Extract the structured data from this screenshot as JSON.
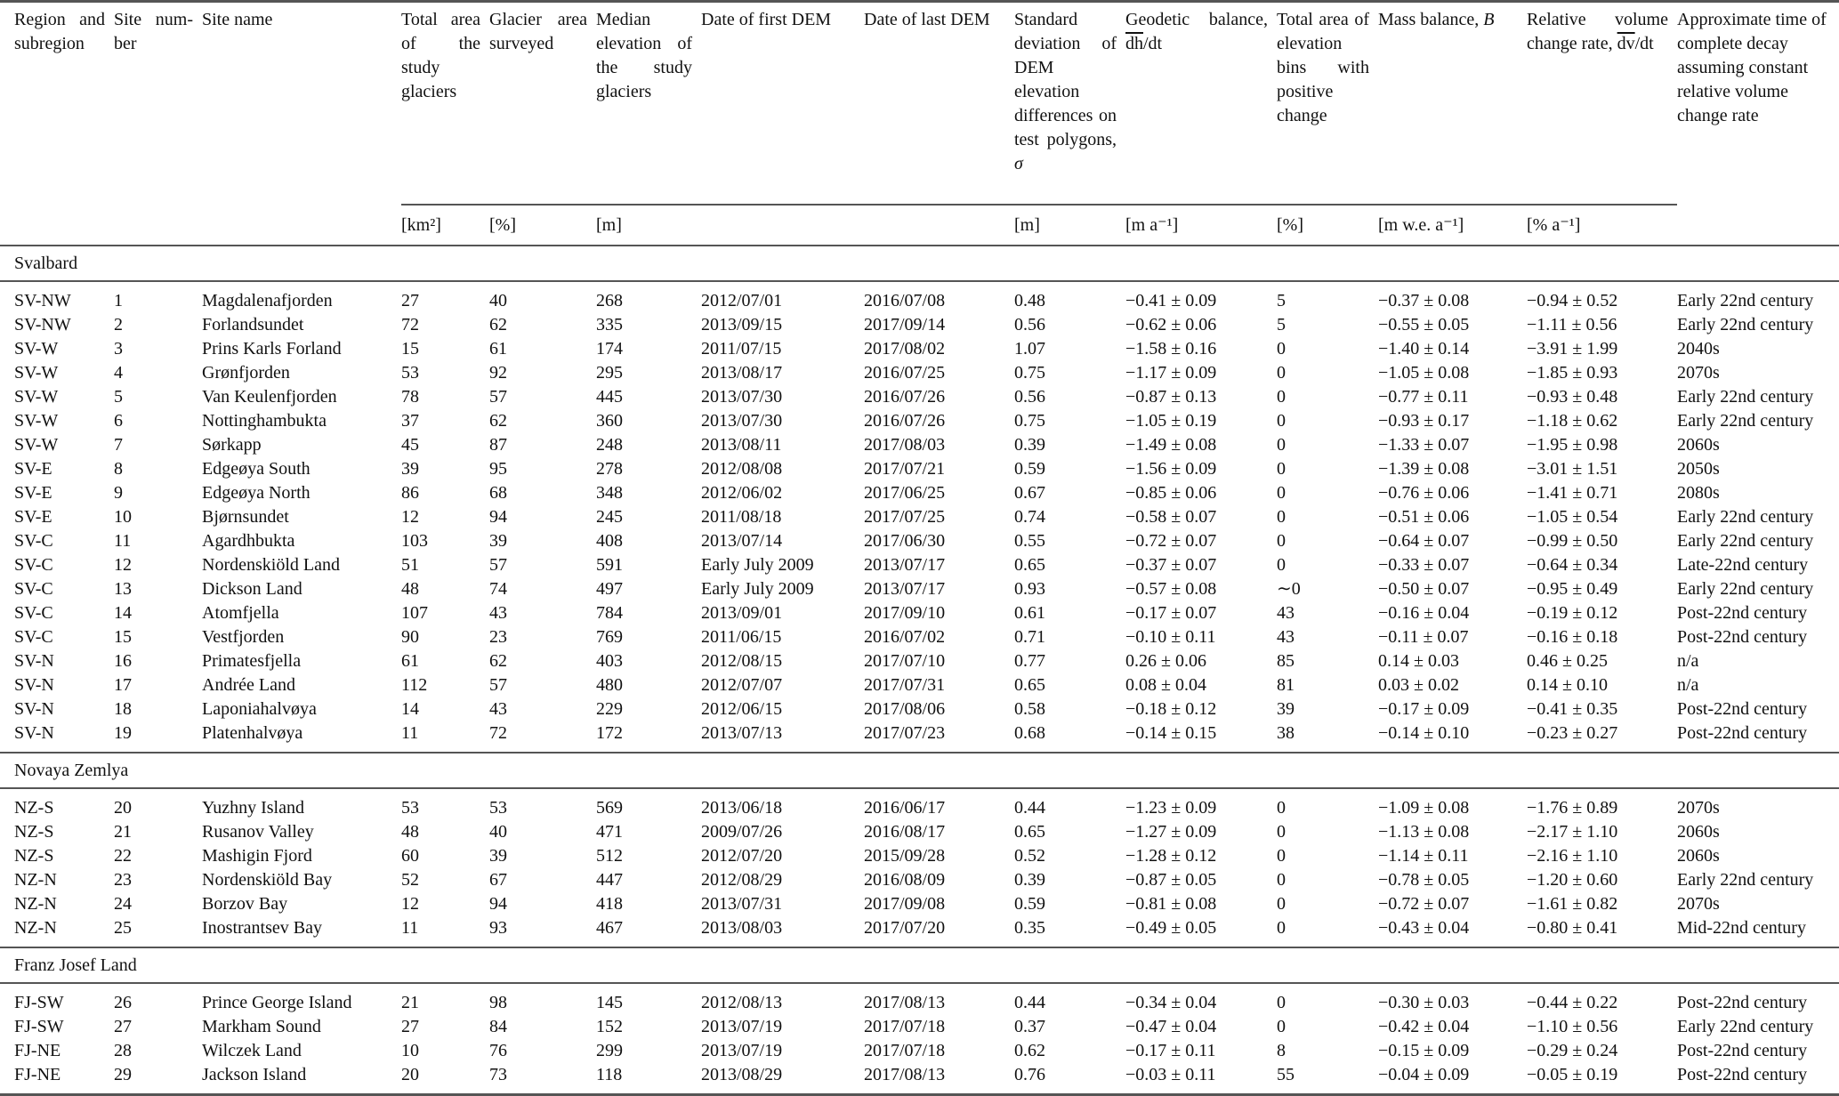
{
  "headers": {
    "region": "Region and subregion",
    "site_number": "Site num­ber",
    "site_name": "Site name",
    "total_area": "Total area of the study glaciers",
    "glacier_area": "Glacier area surveyed",
    "median_elev": "Median elevation of the study glaciers",
    "date_first": "Date of first DEM",
    "date_last": "Date of last DEM",
    "std_dev": "Standard deviation of DEM elevation differences on test polygons,",
    "std_dev_symbol": "σ",
    "geodetic": "Geodetic bal­ance,",
    "geodetic_symbol_d": "dh",
    "geodetic_symbol_rest": "/dt",
    "positive_bins": "Total area of elevation bins with positive change",
    "mass_balance": "Mass balance,",
    "mass_balance_symbol": "B",
    "relative_volume": "Relative vol­ume change rate,",
    "relative_volume_symbol_d": "dv",
    "relative_volume_symbol_rest": "/dt",
    "decay_time": "Approximate time of complete decay assuming constant relative volume change rate"
  },
  "units": {
    "total_area": "[km²]",
    "glacier_area": "[%]",
    "median_elev": "[m]",
    "std_dev": "[m]",
    "geodetic": "[m a⁻¹]",
    "positive_bins": "[%]",
    "mass_balance": "[m w.e. a⁻¹]",
    "relative_volume": "[% a⁻¹]"
  },
  "sections": [
    {
      "title": "Svalbard",
      "rows": [
        [
          "SV-NW",
          "1",
          "Magdalenafjorden",
          "27",
          "40",
          "268",
          "2012/07/01",
          "2016/07/08",
          "0.48",
          "−0.41 ± 0.09",
          "5",
          "−0.37 ± 0.08",
          "−0.94 ± 0.52",
          "Early 22nd century"
        ],
        [
          "SV-NW",
          "2",
          "Forlandsundet",
          "72",
          "62",
          "335",
          "2013/09/15",
          "2017/09/14",
          "0.56",
          "−0.62 ± 0.06",
          "5",
          "−0.55 ± 0.05",
          "−1.11 ± 0.56",
          "Early 22nd century"
        ],
        [
          "SV-W",
          "3",
          "Prins Karls Forland",
          "15",
          "61",
          "174",
          "2011/07/15",
          "2017/08/02",
          "1.07",
          "−1.58 ± 0.16",
          "0",
          "−1.40 ± 0.14",
          "−3.91 ± 1.99",
          "2040s"
        ],
        [
          "SV-W",
          "4",
          "Grønfjorden",
          "53",
          "92",
          "295",
          "2013/08/17",
          "2016/07/25",
          "0.75",
          "−1.17 ± 0.09",
          "0",
          "−1.05 ± 0.08",
          "−1.85 ± 0.93",
          "2070s"
        ],
        [
          "SV-W",
          "5",
          "Van Keulenfjorden",
          "78",
          "57",
          "445",
          "2013/07/30",
          "2016/07/26",
          "0.56",
          "−0.87 ± 0.13",
          "0",
          "−0.77 ± 0.11",
          "−0.93 ± 0.48",
          "Early 22nd century"
        ],
        [
          "SV-W",
          "6",
          "Nottinghambukta",
          "37",
          "62",
          "360",
          "2013/07/30",
          "2016/07/26",
          "0.75",
          "−1.05 ± 0.19",
          "0",
          "−0.93 ± 0.17",
          "−1.18 ± 0.62",
          "Early 22nd century"
        ],
        [
          "SV-W",
          "7",
          "Sørkapp",
          "45",
          "87",
          "248",
          "2013/08/11",
          "2017/08/03",
          "0.39",
          "−1.49 ± 0.08",
          "0",
          "−1.33 ± 0.07",
          "−1.95 ± 0.98",
          "2060s"
        ],
        [
          "SV-E",
          "8",
          "Edgeøya South",
          "39",
          "95",
          "278",
          "2012/08/08",
          "2017/07/21",
          "0.59",
          "−1.56 ± 0.09",
          "0",
          "−1.39 ± 0.08",
          "−3.01 ± 1.51",
          "2050s"
        ],
        [
          "SV-E",
          "9",
          "Edgeøya North",
          "86",
          "68",
          "348",
          "2012/06/02",
          "2017/06/25",
          "0.67",
          "−0.85 ± 0.06",
          "0",
          "−0.76 ± 0.06",
          "−1.41 ± 0.71",
          "2080s"
        ],
        [
          "SV-E",
          "10",
          "Bjørnsundet",
          "12",
          "94",
          "245",
          "2011/08/18",
          "2017/07/25",
          "0.74",
          "−0.58 ± 0.07",
          "0",
          "−0.51 ± 0.06",
          "−1.05 ± 0.54",
          "Early 22nd century"
        ],
        [
          "SV-C",
          "11",
          "Agardhbukta",
          "103",
          "39",
          "408",
          "2013/07/14",
          "2017/06/30",
          "0.55",
          "−0.72 ± 0.07",
          "0",
          "−0.64 ± 0.07",
          "−0.99 ± 0.50",
          "Early 22nd century"
        ],
        [
          "SV-C",
          "12",
          "Nordenskiöld Land",
          "51",
          "57",
          "591",
          "Early July 2009",
          "2013/07/17",
          "0.65",
          "−0.37 ± 0.07",
          "0",
          "−0.33 ± 0.07",
          "−0.64 ± 0.34",
          "Late-22nd century"
        ],
        [
          "SV-C",
          "13",
          "Dickson Land",
          "48",
          "74",
          "497",
          "Early July 2009",
          "2013/07/17",
          "0.93",
          "−0.57 ± 0.08",
          "∼0",
          "−0.50 ± 0.07",
          "−0.95 ± 0.49",
          "Early 22nd century"
        ],
        [
          "SV-C",
          "14",
          "Atomfjella",
          "107",
          "43",
          "784",
          "2013/09/01",
          "2017/09/10",
          "0.61",
          "−0.17 ± 0.07",
          "43",
          "−0.16 ± 0.04",
          "−0.19 ± 0.12",
          "Post-22nd century"
        ],
        [
          "SV-C",
          "15",
          "Vestfjorden",
          "90",
          "23",
          "769",
          "2011/06/15",
          "2016/07/02",
          "0.71",
          "−0.10 ± 0.11",
          "43",
          "−0.11 ± 0.07",
          "−0.16 ± 0.18",
          "Post-22nd century"
        ],
        [
          "SV-N",
          "16",
          "Primatesfjella",
          "61",
          "62",
          "403",
          "2012/08/15",
          "2017/07/10",
          "0.77",
          "0.26 ± 0.06",
          "85",
          "0.14 ± 0.03",
          "0.46 ± 0.25",
          "n/a"
        ],
        [
          "SV-N",
          "17",
          "Andrée Land",
          "112",
          "57",
          "480",
          "2012/07/07",
          "2017/07/31",
          "0.65",
          "0.08 ± 0.04",
          "81",
          "0.03 ± 0.02",
          "0.14 ± 0.10",
          "n/a"
        ],
        [
          "SV-N",
          "18",
          "Laponiahalvøya",
          "14",
          "43",
          "229",
          "2012/06/15",
          "2017/08/06",
          "0.58",
          "−0.18 ± 0.12",
          "39",
          "−0.17 ± 0.09",
          "−0.41 ± 0.35",
          "Post-22nd century"
        ],
        [
          "SV-N",
          "19",
          "Platenhalvøya",
          "11",
          "72",
          "172",
          "2013/07/13",
          "2017/07/23",
          "0.68",
          "−0.14 ± 0.15",
          "38",
          "−0.14 ± 0.10",
          "−0.23 ± 0.27",
          "Post-22nd century"
        ]
      ]
    },
    {
      "title": "Novaya Zemlya",
      "rows": [
        [
          "NZ-S",
          "20",
          "Yuzhny Island",
          "53",
          "53",
          "569",
          "2013/06/18",
          "2016/06/17",
          "0.44",
          "−1.23 ± 0.09",
          "0",
          "−1.09 ± 0.08",
          "−1.76 ± 0.89",
          "2070s"
        ],
        [
          "NZ-S",
          "21",
          "Rusanov Valley",
          "48",
          "40",
          "471",
          "2009/07/26",
          "2016/08/17",
          "0.65",
          "−1.27 ± 0.09",
          "0",
          "−1.13 ± 0.08",
          "−2.17 ± 1.10",
          "2060s"
        ],
        [
          "NZ-S",
          "22",
          "Mashigin Fjord",
          "60",
          "39",
          "512",
          "2012/07/20",
          "2015/09/28",
          "0.52",
          "−1.28 ± 0.12",
          "0",
          "−1.14 ± 0.11",
          "−2.16 ± 1.10",
          "2060s"
        ],
        [
          "NZ-N",
          "23",
          "Nordenskiöld Bay",
          "52",
          "67",
          "447",
          "2012/08/29",
          "2016/08/09",
          "0.39",
          "−0.87 ± 0.05",
          "0",
          "−0.78 ± 0.05",
          "−1.20 ± 0.60",
          "Early 22nd century"
        ],
        [
          "NZ-N",
          "24",
          "Borzov Bay",
          "12",
          "94",
          "418",
          "2013/07/31",
          "2017/09/08",
          "0.59",
          "−0.81 ± 0.08",
          "0",
          "−0.72 ± 0.07",
          "−1.61 ± 0.82",
          "2070s"
        ],
        [
          "NZ-N",
          "25",
          "Inostrantsev Bay",
          "11",
          "93",
          "467",
          "2013/08/03",
          "2017/07/20",
          "0.35",
          "−0.49 ± 0.05",
          "0",
          "−0.43 ± 0.04",
          "−0.80 ± 0.41",
          "Mid-22nd century"
        ]
      ]
    },
    {
      "title": "Franz Josef Land",
      "rows": [
        [
          "FJ-SW",
          "26",
          "Prince George Island",
          "21",
          "98",
          "145",
          "2012/08/13",
          "2017/08/13",
          "0.44",
          "−0.34 ± 0.04",
          "0",
          "−0.30 ± 0.03",
          "−0.44 ± 0.22",
          "Post-22nd century"
        ],
        [
          "FJ-SW",
          "27",
          "Markham Sound",
          "27",
          "84",
          "152",
          "2013/07/19",
          "2017/07/18",
          "0.37",
          "−0.47 ± 0.04",
          "0",
          "−0.42 ± 0.04",
          "−1.10 ± 0.56",
          "Early 22nd century"
        ],
        [
          "FJ-NE",
          "28",
          "Wilczek Land",
          "10",
          "76",
          "299",
          "2013/07/19",
          "2017/07/18",
          "0.62",
          "−0.17 ± 0.11",
          "8",
          "−0.15 ± 0.09",
          "−0.29 ± 0.24",
          "Post-22nd century"
        ],
        [
          "FJ-NE",
          "29",
          "Jackson Island",
          "20",
          "73",
          "118",
          "2013/08/29",
          "2017/08/13",
          "0.76",
          "−0.03 ± 0.11",
          "55",
          "−0.04 ± 0.09",
          "−0.05 ± 0.19",
          "Post-22nd century"
        ]
      ]
    }
  ]
}
